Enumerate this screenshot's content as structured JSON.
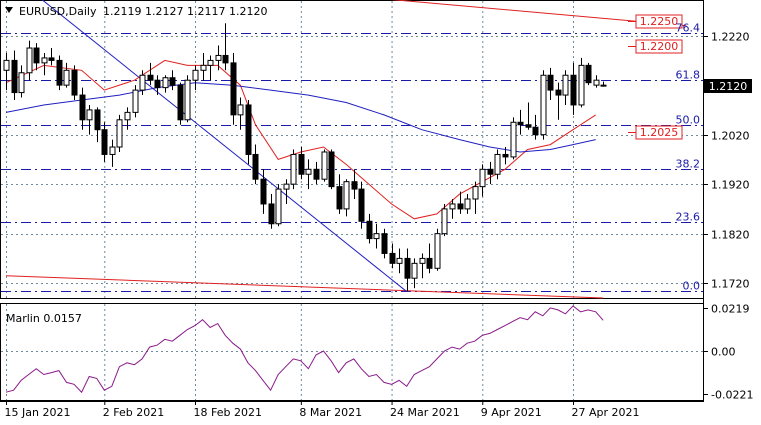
{
  "chart_data": [
    {
      "type": "candlestick",
      "title": "EURUSD,Daily",
      "ohlc_label": "1.2119 1.2127 1.2117 1.2120",
      "current_price": 1.212,
      "current_price_label": "1.2120",
      "ylim": [
        1.169,
        1.229
      ],
      "price_ticks": [
        {
          "v": 1.222,
          "label": "1.2220"
        },
        {
          "v": 1.202,
          "label": "1.2020"
        },
        {
          "v": 1.192,
          "label": "1.1920"
        },
        {
          "v": 1.182,
          "label": "1.1820"
        },
        {
          "v": 1.172,
          "label": "1.1720"
        }
      ],
      "x_labels": [
        {
          "i": 0,
          "label": "15 Jan 2021"
        },
        {
          "i": 13,
          "label": "2 Feb 2021"
        },
        {
          "i": 25,
          "label": "18 Feb 2021"
        },
        {
          "i": 39,
          "label": "8 Mar 2021"
        },
        {
          "i": 51,
          "label": "24 Mar 2021"
        },
        {
          "i": 63,
          "label": "9 Apr 2021"
        },
        {
          "i": 75,
          "label": "27 Apr 2021"
        }
      ],
      "fib_levels": [
        {
          "v": 1.2226,
          "label": "76.4"
        },
        {
          "v": 1.213,
          "label": "61.8"
        },
        {
          "v": 1.204,
          "label": "50.0"
        },
        {
          "v": 1.1951,
          "label": "38.2"
        },
        {
          "v": 1.1844,
          "label": "23.6"
        },
        {
          "v": 1.1704,
          "label": "0.0"
        }
      ],
      "target_levels": [
        {
          "v": 1.225,
          "label": "1.2250"
        },
        {
          "v": 1.22,
          "label": "1.2200"
        },
        {
          "v": 1.2025,
          "label": "1.2025"
        }
      ],
      "trend_lines": [
        {
          "name": "upper-channel-line",
          "color": "#e02020",
          "from": [
            0,
            1.2362
          ],
          "to": [
            90,
            1.224
          ]
        },
        {
          "name": "lower-channel-line",
          "color": "#e02020",
          "from": [
            0,
            1.1735
          ],
          "to": [
            79,
            1.169
          ]
        },
        {
          "name": "descending-trend-line",
          "color": "#2020c0",
          "from": [
            4,
            1.2302
          ],
          "to": [
            53,
            1.1703
          ]
        }
      ],
      "candles": [
        [
          1.215,
          1.2185,
          1.211,
          1.217
        ],
        [
          1.217,
          1.219,
          1.209,
          1.2105
        ],
        [
          1.2105,
          1.216,
          1.2095,
          1.2145
        ],
        [
          1.2145,
          1.221,
          1.213,
          1.2195
        ],
        [
          1.2195,
          1.2205,
          1.215,
          1.2165
        ],
        [
          1.2165,
          1.2185,
          1.214,
          1.2175
        ],
        [
          1.2175,
          1.2195,
          1.216,
          1.217
        ],
        [
          1.217,
          1.218,
          1.211,
          1.212
        ],
        [
          1.212,
          1.2165,
          1.2115,
          1.215
        ],
        [
          1.215,
          1.216,
          1.209,
          1.21
        ],
        [
          1.21,
          1.2115,
          1.203,
          1.205
        ],
        [
          1.205,
          1.208,
          1.202,
          1.207
        ],
        [
          1.207,
          1.2075,
          1.2005,
          1.203
        ],
        [
          1.203,
          1.2045,
          1.1965,
          1.198
        ],
        [
          1.198,
          1.201,
          1.1955,
          1.1995
        ],
        [
          1.1995,
          1.206,
          1.1985,
          1.205
        ],
        [
          1.205,
          1.2075,
          1.203,
          1.2065
        ],
        [
          1.2065,
          1.212,
          1.2055,
          1.211
        ],
        [
          1.211,
          1.215,
          1.21,
          1.214
        ],
        [
          1.214,
          1.2165,
          1.212,
          1.213
        ],
        [
          1.213,
          1.214,
          1.21,
          1.2115
        ],
        [
          1.2115,
          1.214,
          1.2105,
          1.2135
        ],
        [
          1.2135,
          1.215,
          1.211,
          1.212
        ],
        [
          1.212,
          1.2125,
          1.204,
          1.205
        ],
        [
          1.205,
          1.214,
          1.2045,
          1.213
        ],
        [
          1.213,
          1.216,
          1.211,
          1.215
        ],
        [
          1.215,
          1.2185,
          1.213,
          1.216
        ],
        [
          1.216,
          1.218,
          1.213,
          1.217
        ],
        [
          1.217,
          1.22,
          1.215,
          1.218
        ],
        [
          1.218,
          1.2245,
          1.215,
          1.2165
        ],
        [
          1.2165,
          1.2185,
          1.204,
          1.206
        ],
        [
          1.206,
          1.2095,
          1.203,
          1.208
        ],
        [
          1.208,
          1.209,
          1.196,
          1.198
        ],
        [
          1.198,
          1.2,
          1.192,
          1.193
        ],
        [
          1.193,
          1.195,
          1.186,
          1.188
        ],
        [
          1.188,
          1.19,
          1.183,
          1.184
        ],
        [
          1.184,
          1.192,
          1.1835,
          1.191
        ],
        [
          1.191,
          1.193,
          1.188,
          1.192
        ],
        [
          1.192,
          1.199,
          1.191,
          1.198
        ],
        [
          1.198,
          1.1995,
          1.193,
          1.194
        ],
        [
          1.194,
          1.197,
          1.191,
          1.195
        ],
        [
          1.195,
          1.1965,
          1.192,
          1.193
        ],
        [
          1.193,
          1.199,
          1.1925,
          1.1985
        ],
        [
          1.1985,
          1.199,
          1.191,
          1.1915
        ],
        [
          1.1915,
          1.194,
          1.186,
          1.187
        ],
        [
          1.187,
          1.193,
          1.1855,
          1.1925
        ],
        [
          1.1925,
          1.195,
          1.189,
          1.191
        ],
        [
          1.191,
          1.1925,
          1.183,
          1.1845
        ],
        [
          1.1845,
          1.186,
          1.18,
          1.181
        ],
        [
          1.181,
          1.184,
          1.179,
          1.182
        ],
        [
          1.182,
          1.183,
          1.177,
          1.178
        ],
        [
          1.178,
          1.18,
          1.175,
          1.176
        ],
        [
          1.176,
          1.179,
          1.174,
          1.177
        ],
        [
          1.177,
          1.179,
          1.1704,
          1.173
        ],
        [
          1.173,
          1.177,
          1.171,
          1.176
        ],
        [
          1.176,
          1.178,
          1.173,
          1.177
        ],
        [
          1.177,
          1.18,
          1.174,
          1.175
        ],
        [
          1.175,
          1.183,
          1.1745,
          1.182
        ],
        [
          1.182,
          1.188,
          1.1815,
          1.187
        ],
        [
          1.187,
          1.189,
          1.185,
          1.188
        ],
        [
          1.188,
          1.1905,
          1.186,
          1.187
        ],
        [
          1.187,
          1.19,
          1.186,
          1.189
        ],
        [
          1.189,
          1.1925,
          1.186,
          1.1915
        ],
        [
          1.1915,
          1.196,
          1.1895,
          1.195
        ],
        [
          1.195,
          1.1965,
          1.192,
          1.194
        ],
        [
          1.194,
          1.199,
          1.193,
          1.198
        ],
        [
          1.198,
          1.1995,
          1.196,
          1.1975
        ],
        [
          1.1975,
          1.2055,
          1.197,
          1.2045
        ],
        [
          1.2045,
          1.207,
          1.202,
          1.204
        ],
        [
          1.204,
          1.2085,
          1.203,
          1.2035
        ],
        [
          1.2035,
          1.206,
          1.201,
          1.202
        ],
        [
          1.202,
          1.215,
          1.201,
          1.214
        ],
        [
          1.214,
          1.2155,
          1.209,
          1.211
        ],
        [
          1.211,
          1.2125,
          1.205,
          1.21
        ],
        [
          1.21,
          1.215,
          1.208,
          1.214
        ],
        [
          1.214,
          1.2165,
          1.206,
          1.208
        ],
        [
          1.208,
          1.2175,
          1.2075,
          1.216
        ],
        [
          1.216,
          1.2165,
          1.212,
          1.2125
        ],
        [
          1.212,
          1.214,
          1.2115,
          1.213
        ],
        [
          1.2119,
          1.2127,
          1.2117,
          1.212
        ]
      ],
      "series": [
        {
          "name": "",
          "color": "#e02020",
          "points": [
            [
              0,
              1.2125
            ],
            [
              5,
              1.216
            ],
            [
              10,
              1.215
            ],
            [
              13,
              1.211
            ],
            [
              17,
              1.213
            ],
            [
              21,
              1.217
            ],
            [
              24,
              1.216
            ],
            [
              28,
              1.216
            ],
            [
              31,
              1.212
            ],
            [
              33,
              1.204
            ],
            [
              36,
              1.197
            ],
            [
              39,
              1.1985
            ],
            [
              42,
              1.1995
            ],
            [
              45,
              1.196
            ],
            [
              48,
              1.192
            ],
            [
              51,
              1.188
            ],
            [
              54,
              1.185
            ],
            [
              57,
              1.186
            ],
            [
              60,
              1.19
            ],
            [
              63,
              1.1925
            ],
            [
              66,
              1.195
            ],
            [
              69,
              1.199
            ],
            [
              72,
              1.2
            ],
            [
              75,
              1.203
            ],
            [
              78,
              1.206
            ]
          ]
        },
        {
          "name": "",
          "color": "#2020c0",
          "points": [
            [
              0,
              1.2065
            ],
            [
              5,
              1.208
            ],
            [
              10,
              1.209
            ],
            [
              15,
              1.21
            ],
            [
              20,
              1.2115
            ],
            [
              25,
              1.2125
            ],
            [
              30,
              1.212
            ],
            [
              35,
              1.211
            ],
            [
              40,
              1.21
            ],
            [
              45,
              1.2085
            ],
            [
              50,
              1.206
            ],
            [
              55,
              1.203
            ],
            [
              60,
              1.201
            ],
            [
              64,
              1.1995
            ],
            [
              68,
              1.1985
            ],
            [
              72,
              1.199
            ],
            [
              75,
              1.2
            ],
            [
              78,
              1.201
            ]
          ]
        }
      ]
    },
    {
      "type": "line",
      "title": "Marlin 0.0157",
      "ylim": [
        -0.025,
        0.024
      ],
      "ticks": [
        {
          "v": 0.0219,
          "label": "0.0219"
        },
        {
          "v": 0.0,
          "label": "0.00"
        },
        {
          "v": -0.0221,
          "label": "-0.0221"
        }
      ],
      "values": [
        -0.021,
        -0.02,
        -0.015,
        -0.012,
        -0.009,
        -0.012,
        -0.011,
        -0.01,
        -0.016,
        -0.017,
        -0.021,
        -0.013,
        -0.014,
        -0.02,
        -0.018,
        -0.008,
        -0.006,
        -0.007,
        -0.004,
        0.002,
        0.003,
        0.006,
        0.005,
        0.008,
        0.011,
        0.013,
        0.016,
        0.012,
        0.014,
        0.008,
        0.004,
        0.001,
        -0.006,
        -0.01,
        -0.015,
        -0.02,
        -0.012,
        -0.008,
        -0.004,
        -0.005,
        -0.009,
        -0.002,
        0.0,
        -0.005,
        -0.011,
        -0.006,
        -0.004,
        -0.009,
        -0.013,
        -0.012,
        -0.016,
        -0.017,
        -0.015,
        -0.018,
        -0.012,
        -0.01,
        -0.008,
        -0.004,
        0.0,
        0.002,
        0.001,
        0.004,
        0.005,
        0.008,
        0.009,
        0.011,
        0.013,
        0.015,
        0.017,
        0.016,
        0.02,
        0.018,
        0.022,
        0.021,
        0.019,
        0.023,
        0.02,
        0.021,
        0.02,
        0.0157
      ]
    }
  ]
}
